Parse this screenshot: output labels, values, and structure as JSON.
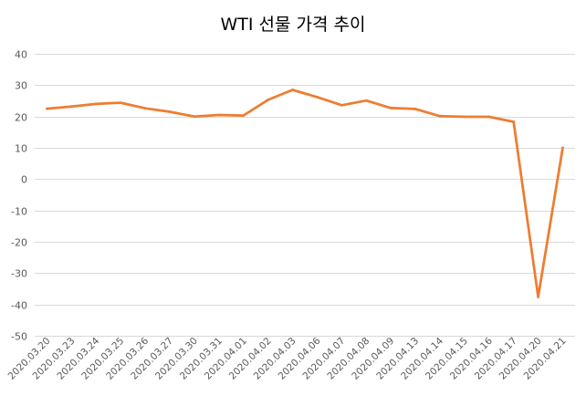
{
  "chart_data": {
    "type": "line",
    "title": "WTI 선물 가격 추이",
    "xlabel": "",
    "ylabel": "",
    "ylim": [
      -50,
      40
    ],
    "yticks": [
      40,
      30,
      20,
      10,
      0,
      -10,
      -20,
      -30,
      -40,
      -50
    ],
    "grid": true,
    "legend": "none",
    "color": "#ed7d31",
    "categories": [
      "2020.03.20",
      "2020.03.23",
      "2020.03.24",
      "2020.03.25",
      "2020.03.26",
      "2020.03.27",
      "2020.03.30",
      "2020.03.31",
      "2020.04.01",
      "2020.04.02",
      "2020.04.03",
      "2020.04.06",
      "2020.04.07",
      "2020.04.08",
      "2020.04.09",
      "2020.04.13",
      "2020.04.14",
      "2020.04.15",
      "2020.04.16",
      "2020.04.17",
      "2020.04.20",
      "2020.04.21"
    ],
    "series": [
      {
        "values": [
          22.5,
          23.2,
          24.0,
          24.4,
          22.6,
          21.5,
          20.0,
          20.5,
          20.3,
          25.3,
          28.5,
          26.2,
          23.6,
          25.1,
          22.7,
          22.4,
          20.1,
          19.9,
          19.9,
          18.3,
          -37.6,
          10.0
        ]
      }
    ]
  }
}
